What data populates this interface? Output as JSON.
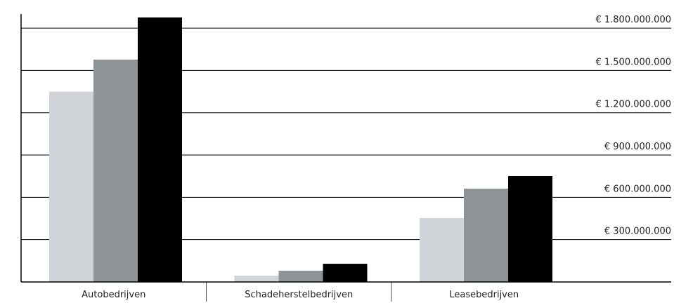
{
  "chart_data": {
    "type": "bar",
    "categories": [
      "Autobedrijven",
      "Schadeherstelbedrijven",
      "Leasebedrijven"
    ],
    "series": [
      {
        "color": "#d1d5d9",
        "values": [
          1350000000,
          45000000,
          453000000
        ]
      },
      {
        "color": "#8e9396",
        "values": [
          1577000000,
          80000000,
          662000000
        ]
      },
      {
        "color": "#000000",
        "values": [
          1876000000,
          129000000,
          751000000
        ]
      }
    ],
    "ylim": [
      0,
      1900000000
    ],
    "yticks": [
      {
        "value": 300000000,
        "label": "€ 300.000.000"
      },
      {
        "value": 600000000,
        "label": "€ 600.000.000"
      },
      {
        "value": 900000000,
        "label": "€ 900.000.000"
      },
      {
        "value": 1200000000,
        "label": "€ 1.200.000.000"
      },
      {
        "value": 1500000000,
        "label": "€ 1.500.000.000"
      },
      {
        "value": 1800000000,
        "label": "€ 1.800.000.000"
      }
    ],
    "grid": true
  }
}
